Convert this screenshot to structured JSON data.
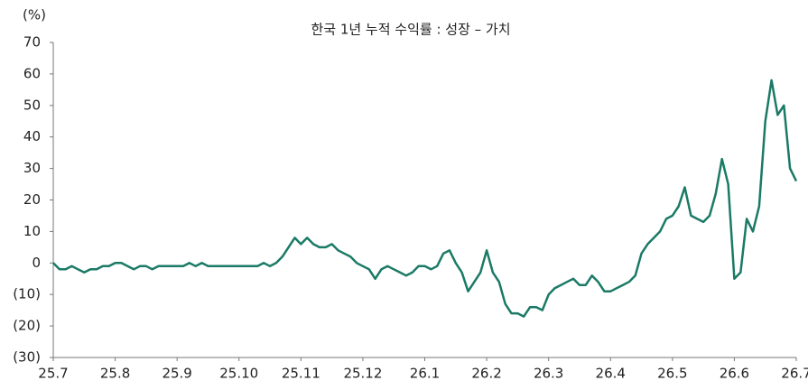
{
  "chart_data": {
    "type": "line",
    "title": "한국 1년 누적 수익률 : 성장 – 가치",
    "y_label": "(%)",
    "categories": [
      "25.7",
      null,
      null,
      null,
      null,
      null,
      null,
      null,
      null,
      null,
      "25.8",
      null,
      null,
      null,
      null,
      null,
      null,
      null,
      null,
      null,
      "25.9",
      null,
      null,
      null,
      null,
      null,
      null,
      null,
      null,
      null,
      "25.10",
      null,
      null,
      null,
      null,
      null,
      null,
      null,
      null,
      null,
      "25.11",
      null,
      null,
      null,
      null,
      null,
      null,
      null,
      null,
      null,
      "25.12",
      null,
      null,
      null,
      null,
      null,
      null,
      null,
      null,
      null,
      "26.1",
      null,
      null,
      null,
      null,
      null,
      null,
      null,
      null,
      null,
      "26.2",
      null,
      null,
      null,
      null,
      null,
      null,
      null,
      null,
      null,
      "26.3",
      null,
      null,
      null,
      null,
      null,
      null,
      null,
      null,
      null,
      "26.4",
      null,
      null,
      null,
      null,
      null,
      null,
      null,
      null,
      null,
      "26.5",
      null,
      null,
      null,
      null,
      null,
      null,
      null,
      null,
      null,
      "26.6",
      null,
      null,
      null,
      null,
      null,
      null,
      null,
      null,
      null,
      "26.7"
    ],
    "series": [
      {
        "name": "성장 – 가치",
        "color": "#1a7a66",
        "values": [
          0,
          -2,
          -2,
          -1,
          -2,
          -3,
          -2,
          -2,
          -1,
          -1,
          0,
          0,
          -1,
          -2,
          -1,
          -1,
          -2,
          -1,
          -1,
          -1,
          -1,
          -1,
          0,
          -1,
          0,
          -1,
          -1,
          -1,
          -1,
          -1,
          -1,
          -1,
          -1,
          -1,
          0,
          -1,
          0,
          2,
          5,
          8,
          6,
          8,
          6,
          5,
          5,
          6,
          4,
          3,
          2,
          0,
          -1,
          -2,
          -5,
          -2,
          -1,
          -2,
          -3,
          -4,
          -3,
          -1,
          -1,
          -2,
          -1,
          3,
          4,
          0,
          -3,
          -9,
          -6,
          -3,
          4,
          -3,
          -6,
          -13,
          -16,
          -16,
          -17,
          -14,
          -14,
          -15,
          -10,
          -8,
          -7,
          -6,
          -5,
          -7,
          -7,
          -4,
          -6,
          -9,
          -9,
          -8,
          -7,
          -6,
          -4,
          3,
          6,
          8,
          10,
          14,
          15,
          18,
          24,
          15,
          14,
          13,
          15,
          22,
          33,
          25,
          -5,
          -3,
          14,
          10,
          18,
          45,
          58,
          47,
          50,
          30,
          26
        ]
      }
    ],
    "ylim": [
      -30,
      70
    ],
    "yticks": [
      {
        "value": -30,
        "label": "(30)"
      },
      {
        "value": -20,
        "label": "(20)"
      },
      {
        "value": -10,
        "label": "(10)"
      },
      0,
      10,
      20,
      30,
      40,
      50,
      60,
      70
    ]
  }
}
